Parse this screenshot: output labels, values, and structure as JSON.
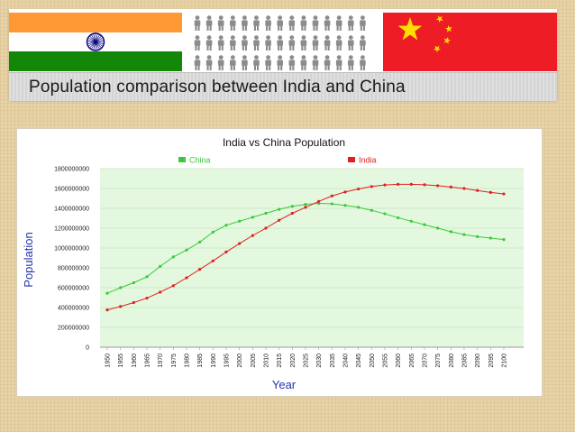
{
  "banner": {
    "title": "Population comparison between India and China"
  },
  "colors": {
    "saffron": "#ff9933",
    "india_green": "#138808",
    "chakra_blue": "#000080",
    "china_red": "#ee1c25",
    "china_yellow": "#ffde00",
    "people_gray": "#8c8c8c",
    "china_series": "#3cc83c",
    "india_series": "#e02020",
    "plot_bg": "#e3f8df",
    "ylabel_color": "#2233aa",
    "xlabel_color": "#2233aa"
  },
  "chart_data": {
    "type": "line",
    "title": "India vs China Population",
    "xlabel": "Year",
    "ylabel": "Population",
    "ylim": [
      0,
      1800000000
    ],
    "y_ticks": [
      "0",
      "200000000",
      "400000000",
      "600000000",
      "800000000",
      "1000000000",
      "1200000000",
      "1400000000",
      "1600000000",
      "1800000000"
    ],
    "grid": true,
    "legend_position": "top",
    "x": [
      "1950",
      "1955",
      "1960",
      "1965",
      "1970",
      "1975",
      "1980",
      "1985",
      "1990",
      "1995",
      "2000",
      "2005",
      "2010",
      "2015",
      "2020",
      "2025",
      "2030",
      "2035",
      "2040",
      "2045",
      "2050",
      "2055",
      "2060",
      "2065",
      "2070",
      "2075",
      "2080",
      "2085",
      "2090",
      "2095",
      "2100"
    ],
    "series": [
      {
        "name": "China",
        "color": "#3cc83c",
        "values": [
          544000000,
          600000000,
          650000000,
          710000000,
          815000000,
          910000000,
          980000000,
          1060000000,
          1160000000,
          1230000000,
          1270000000,
          1310000000,
          1350000000,
          1390000000,
          1420000000,
          1440000000,
          1450000000,
          1445000000,
          1430000000,
          1410000000,
          1380000000,
          1345000000,
          1305000000,
          1270000000,
          1235000000,
          1200000000,
          1165000000,
          1135000000,
          1115000000,
          1100000000,
          1085000000
        ]
      },
      {
        "name": "India",
        "color": "#e02020",
        "values": [
          376000000,
          410000000,
          450000000,
          495000000,
          555000000,
          620000000,
          700000000,
          785000000,
          870000000,
          960000000,
          1045000000,
          1125000000,
          1200000000,
          1280000000,
          1350000000,
          1410000000,
          1470000000,
          1525000000,
          1565000000,
          1595000000,
          1620000000,
          1635000000,
          1642000000,
          1642000000,
          1638000000,
          1628000000,
          1615000000,
          1600000000,
          1580000000,
          1560000000,
          1545000000
        ]
      }
    ]
  }
}
